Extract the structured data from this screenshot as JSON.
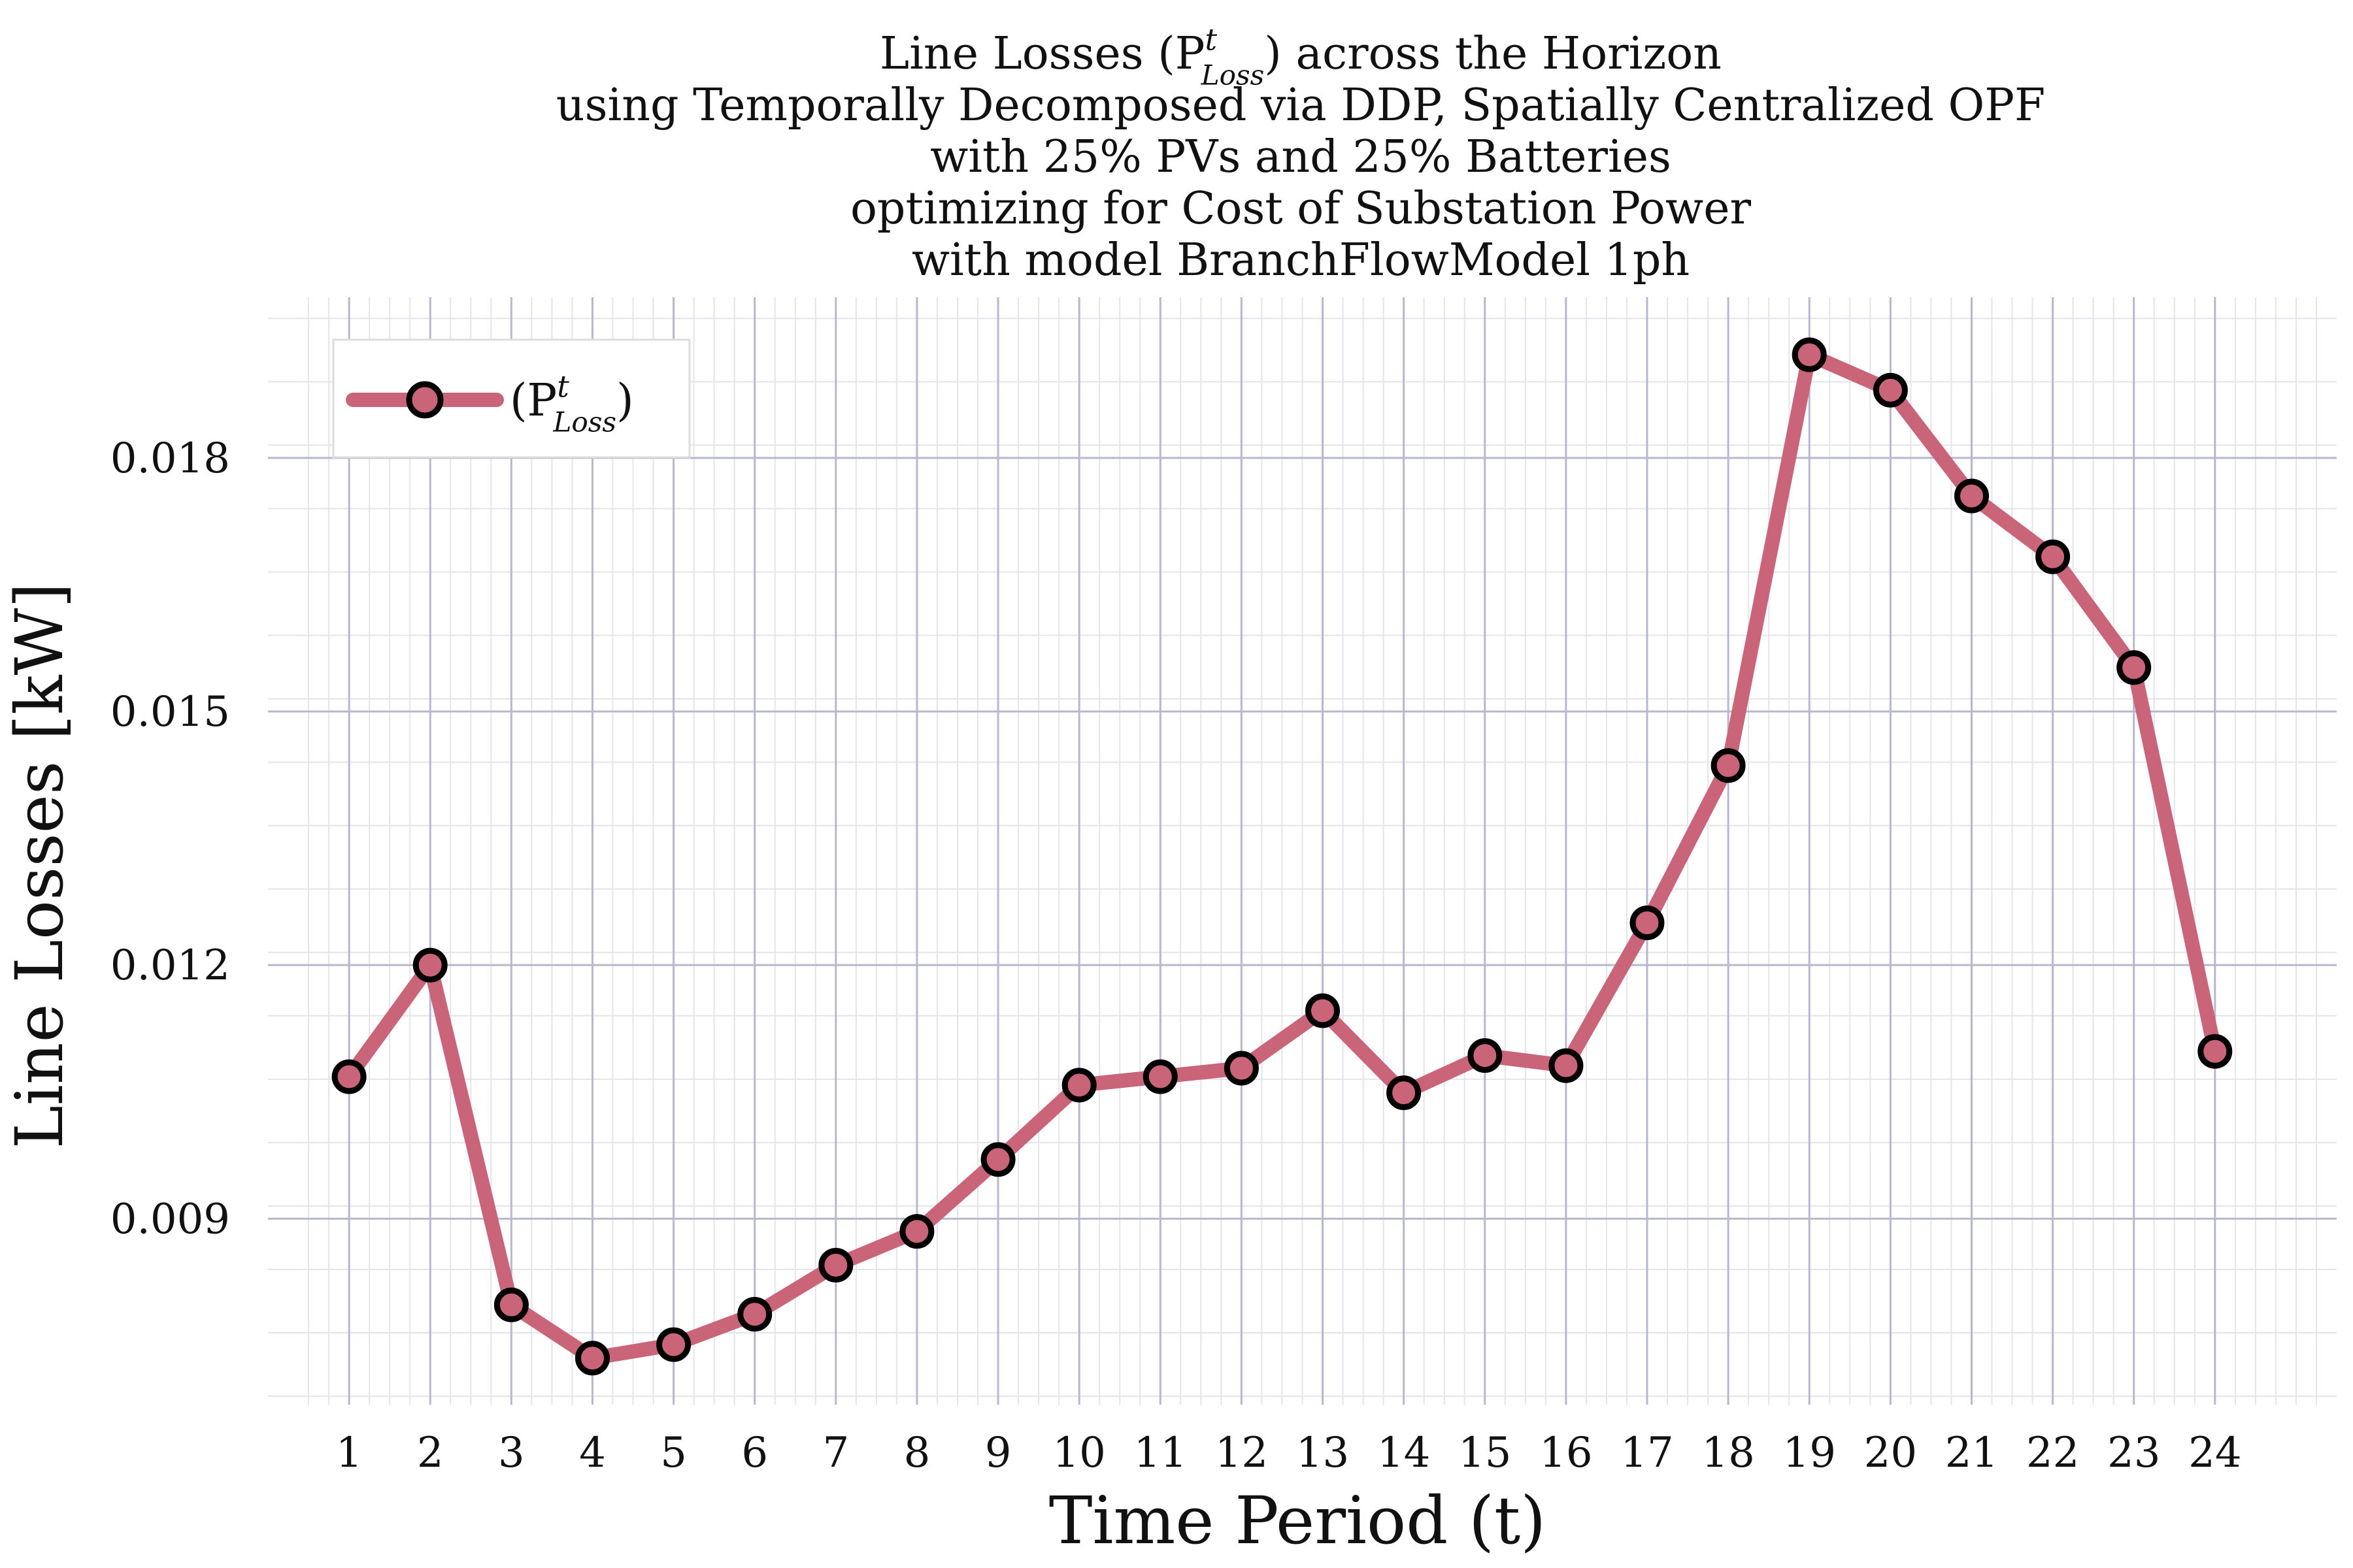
{
  "chart_data": {
    "type": "line",
    "title_lines": [
      "Line Losses (P^t_Loss) across the Horizon",
      "using Temporally Decomposed via DDP, Spatially Centralized OPF",
      "with 25% PVs and 25% Batteries",
      "optimizing for Cost of Substation Power",
      "with model BranchFlowModel 1ph"
    ],
    "xlabel": "Time Period (t)",
    "ylabel": "Line Losses [kW]",
    "x": [
      1,
      2,
      3,
      4,
      5,
      6,
      7,
      8,
      9,
      10,
      11,
      12,
      13,
      14,
      15,
      16,
      17,
      18,
      19,
      20,
      21,
      22,
      23,
      24
    ],
    "series": [
      {
        "name": "(P^t_Loss)",
        "values": [
          0.01068,
          0.012,
          0.00798,
          0.00735,
          0.00751,
          0.00787,
          0.00845,
          0.00885,
          0.0097,
          0.01058,
          0.01068,
          0.01078,
          0.01146,
          0.01049,
          0.01093,
          0.01081,
          0.0125,
          0.01436,
          0.01922,
          0.0188,
          0.01755,
          0.01683,
          0.01552,
          0.01098
        ]
      }
    ],
    "xticks": [
      "1",
      "2",
      "3",
      "4",
      "5",
      "6",
      "7",
      "8",
      "9",
      "10",
      "11",
      "12",
      "13",
      "14",
      "15",
      "16",
      "17",
      "18",
      "19",
      "20",
      "21",
      "22",
      "23",
      "24"
    ],
    "yticks": [
      "0.009",
      "0.012",
      "0.015",
      "0.018"
    ],
    "ytick_values": [
      0.009,
      0.012,
      0.015,
      0.018
    ],
    "xlim": [
      0,
      25.5
    ],
    "ylim": [
      0.0068,
      0.0199
    ],
    "grid": true,
    "legend_position": "top-left",
    "colors": {
      "line": "#c96479",
      "marker_fill": "#c96479",
      "marker_edge": "#000000",
      "grid_major": "#b8b8cc",
      "grid_minor": "#e4e4ea"
    }
  }
}
